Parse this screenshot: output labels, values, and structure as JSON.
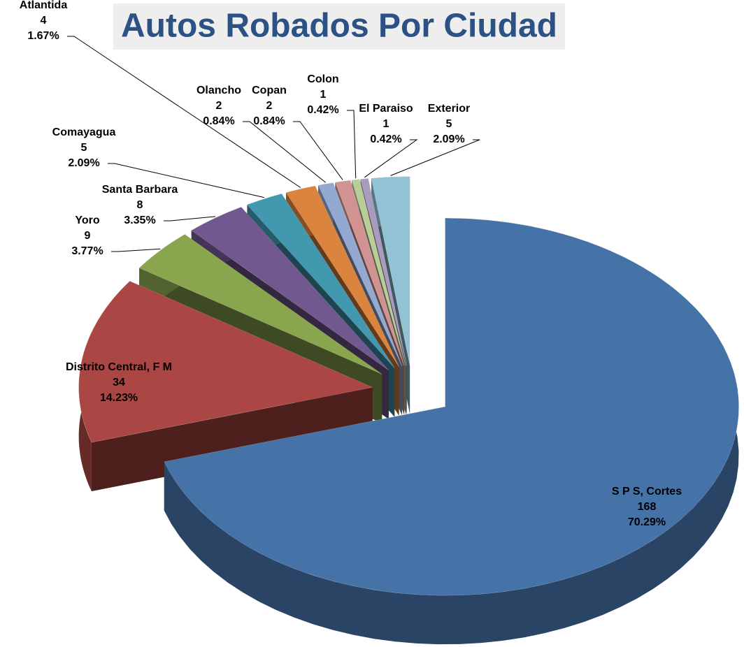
{
  "chart_data": {
    "type": "pie3d",
    "title": "Autos Robados Por Ciudad",
    "categories": [
      "S P S, Cortes",
      "Distrito Central, F M",
      "Yoro",
      "Santa Barbara",
      "Comayagua",
      "Atlantida",
      "Olancho",
      "Copan",
      "Colon",
      "El Paraiso",
      "Exterior"
    ],
    "values": [
      168,
      34,
      9,
      8,
      5,
      4,
      2,
      2,
      1,
      1,
      5
    ],
    "percent_labels": [
      "70.29%",
      "14.23%",
      "3.77%",
      "3.35%",
      "2.09%",
      "1.67%",
      "0.84%",
      "0.84%",
      "0.42%",
      "0.42%",
      "2.09%"
    ],
    "colors": [
      "#4572a7",
      "#aa4643",
      "#89a54e",
      "#71588f",
      "#4198af",
      "#db843d",
      "#93a9cf",
      "#d19392",
      "#b9cd96",
      "#a99bbd",
      "#92c3d5"
    ]
  }
}
